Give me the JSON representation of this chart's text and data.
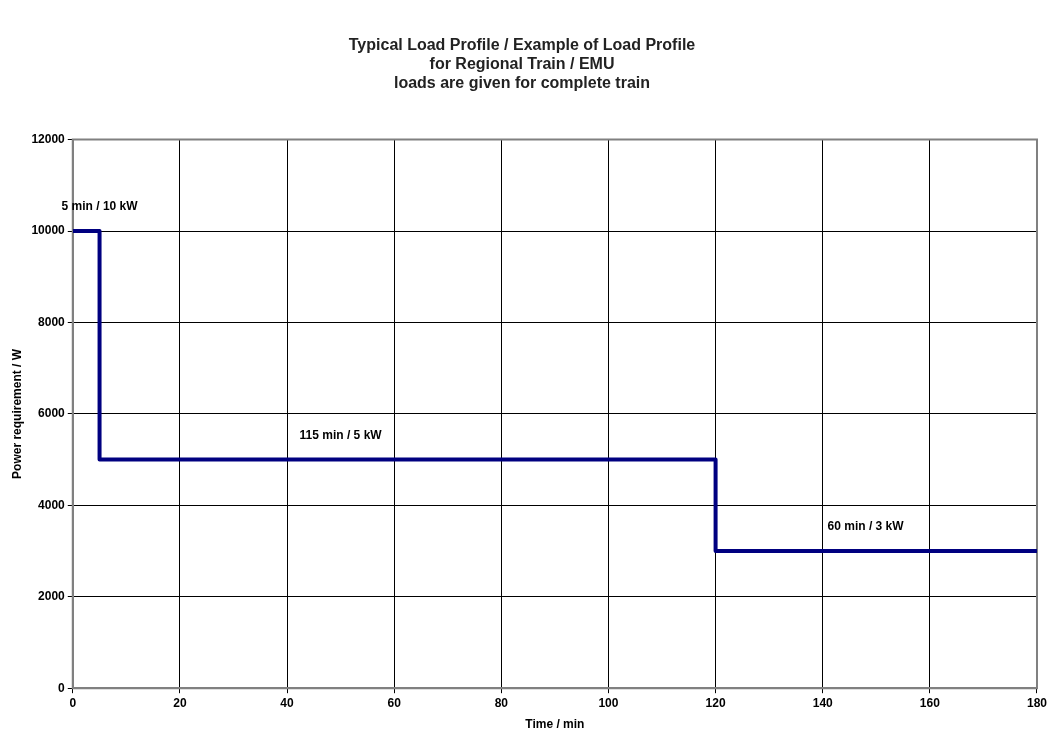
{
  "chart_data": {
    "type": "step",
    "title": "Typical Load Profile / Example of Load Profile\nfor Regional Train / EMU\nloads are given for complete train",
    "xlabel": "Time / min",
    "ylabel": "Power requirement / W",
    "x": [
      0,
      5,
      120,
      180
    ],
    "series": [
      {
        "color": "#000080",
        "values": [
          10000,
          5000,
          3000,
          3000
        ]
      }
    ],
    "xlim": [
      0,
      180
    ],
    "xticks": [
      0,
      20,
      40,
      60,
      80,
      100,
      120,
      140,
      160,
      180
    ],
    "ylim": [
      0,
      12000
    ],
    "yticks": [
      0,
      2000,
      4000,
      6000,
      8000,
      10000,
      12000
    ],
    "grid": true,
    "legend": false,
    "marker": "none",
    "line_style": "solid",
    "annotations": [
      {
        "text": "5 min / 10 kW",
        "x": 5,
        "y": 10000
      },
      {
        "text": "115 min / 5 kW",
        "x": 50,
        "y": 5000
      },
      {
        "text": "60 min / 3 kW",
        "x": 148,
        "y": 3000
      }
    ]
  }
}
